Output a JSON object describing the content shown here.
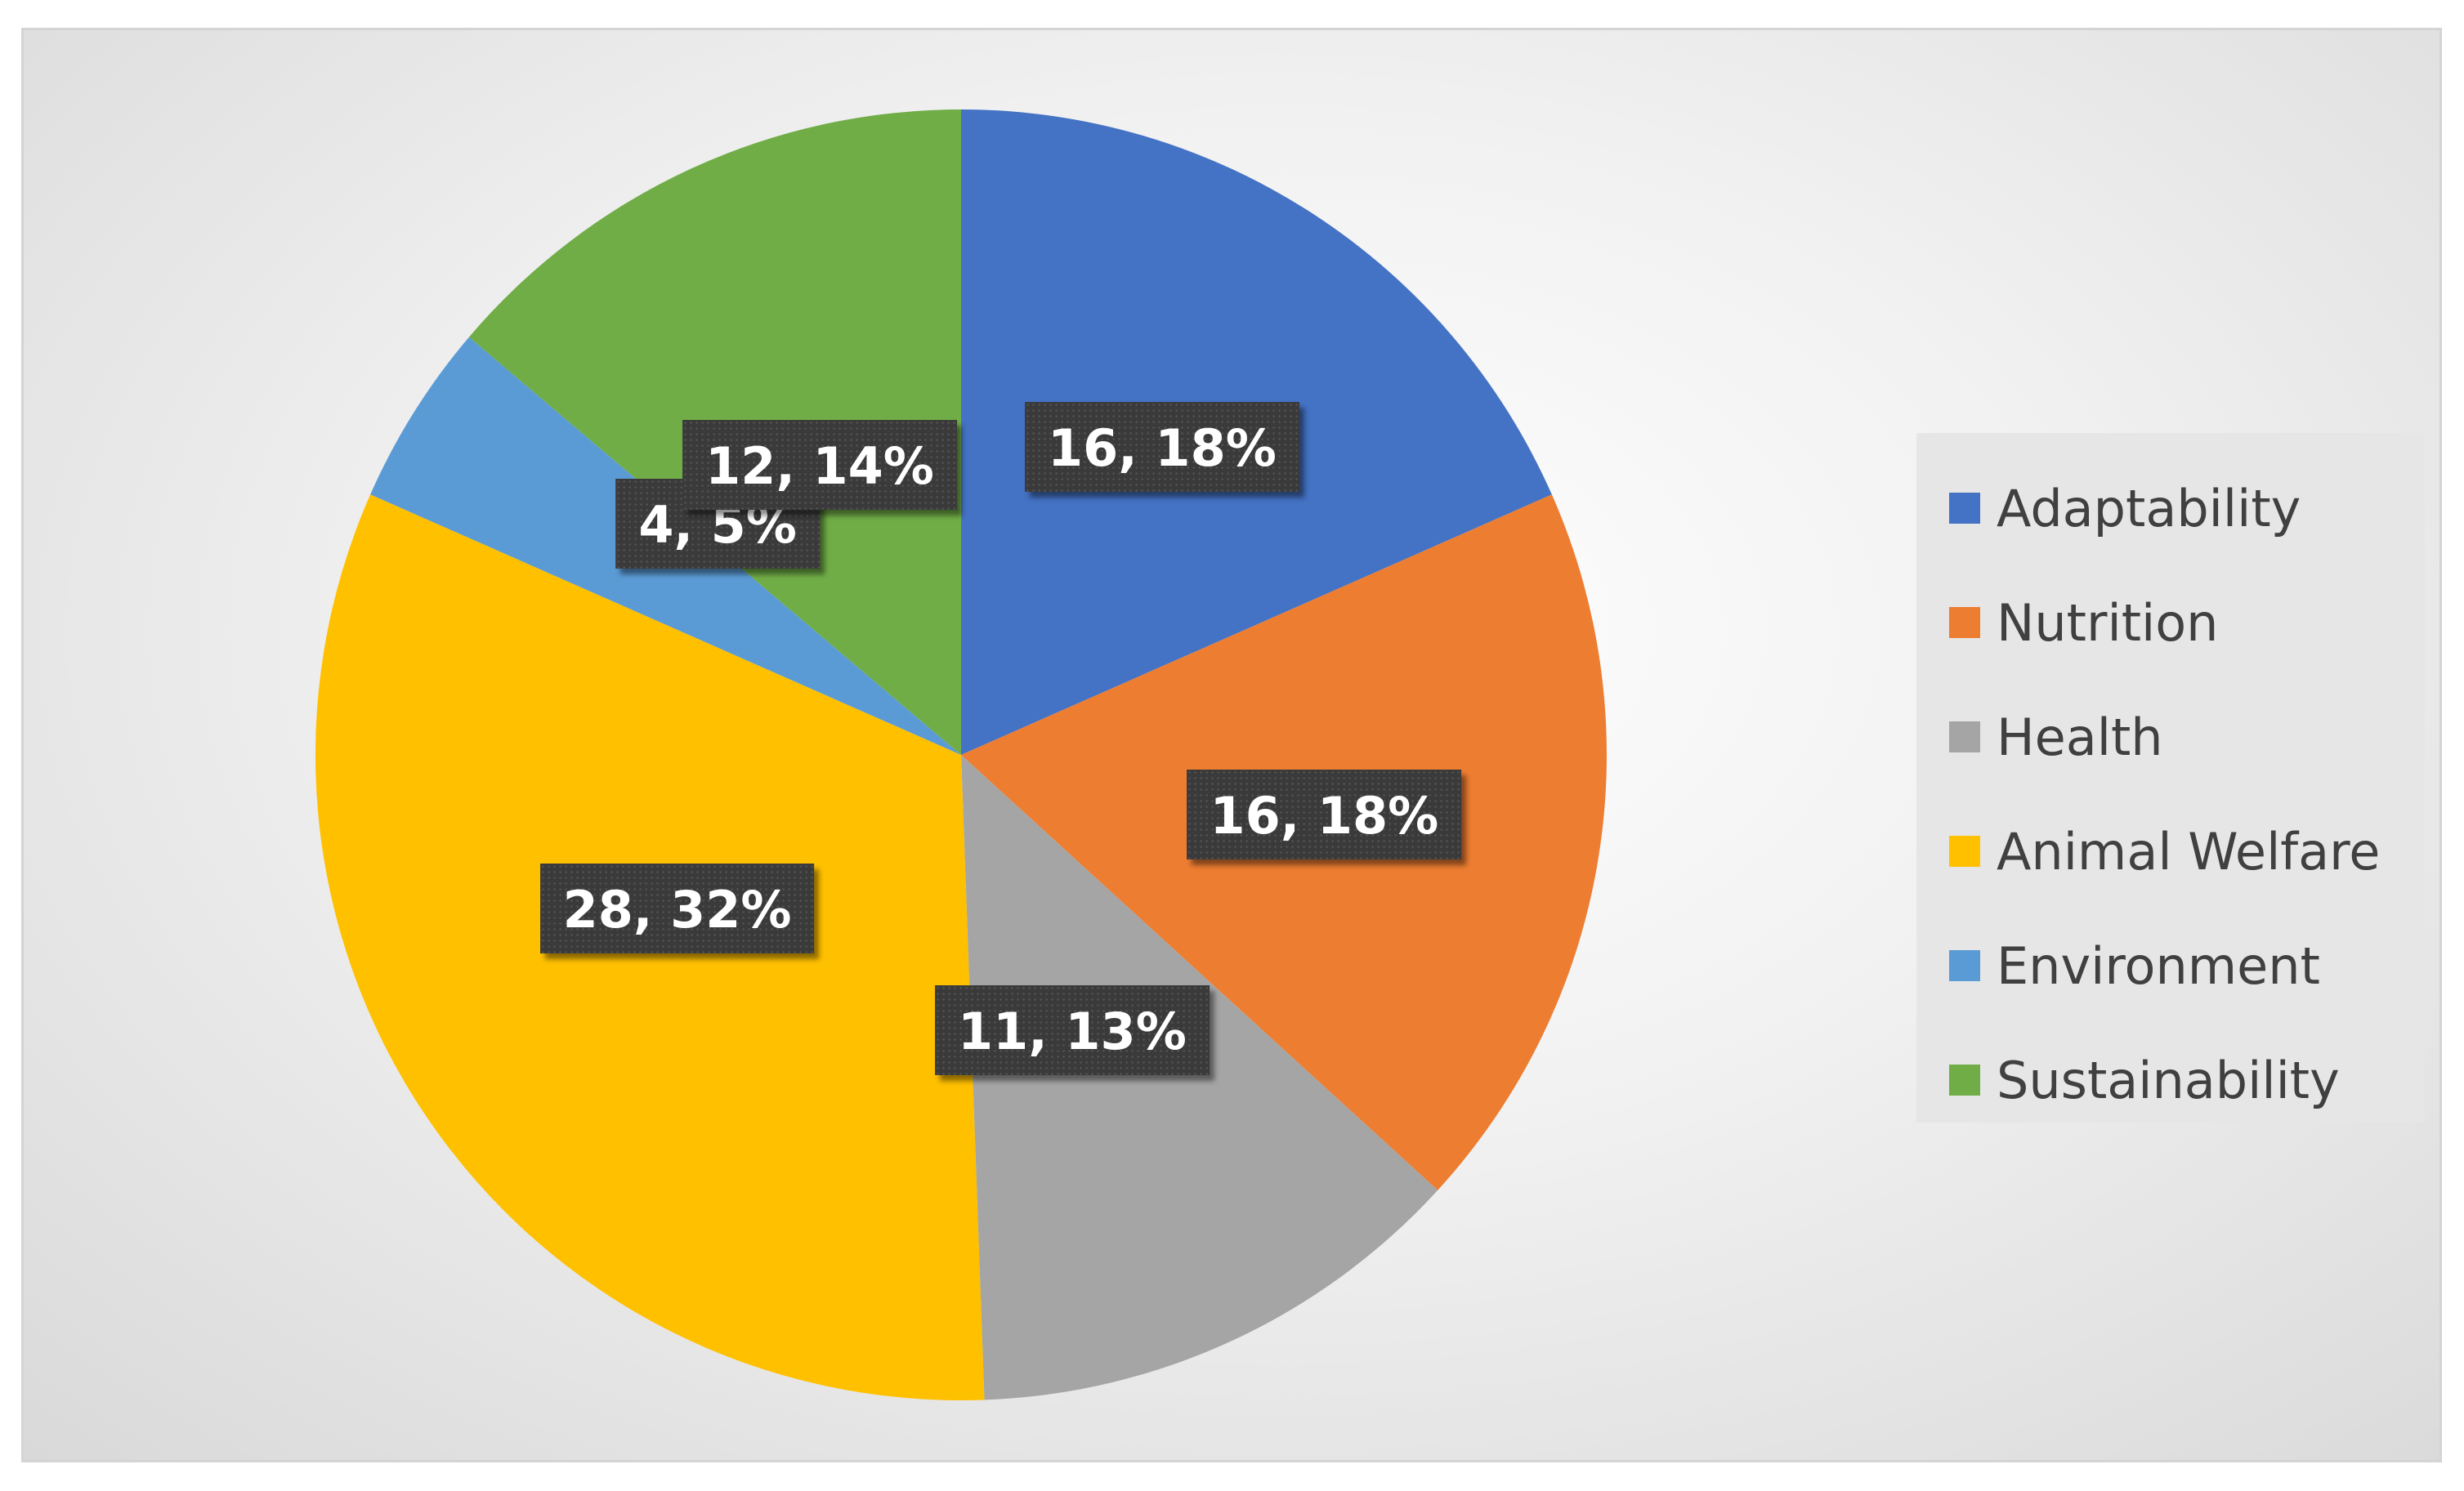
{
  "chart_data": {
    "type": "pie",
    "title": "",
    "legend_position": "right",
    "slices": [
      {
        "name": "Adaptability",
        "value": 16,
        "percent": "18%",
        "color": "#4472C4",
        "label": "16, 18%"
      },
      {
        "name": "Nutrition",
        "value": 16,
        "percent": "18%",
        "color": "#ED7D31",
        "label": "16, 18%"
      },
      {
        "name": "Health",
        "value": 11,
        "percent": "13%",
        "color": "#A5A5A5",
        "label": "11, 13%"
      },
      {
        "name": "Animal Welfare",
        "value": 28,
        "percent": "32%",
        "color": "#FFC000",
        "label": "28, 32%"
      },
      {
        "name": "Environment",
        "value": 4,
        "percent": "5%",
        "color": "#5B9BD5",
        "label": "4, 5%"
      },
      {
        "name": "Sustainability",
        "value": 12,
        "percent": "14%",
        "color": "#70AD47",
        "label": "12, 14%"
      }
    ]
  }
}
